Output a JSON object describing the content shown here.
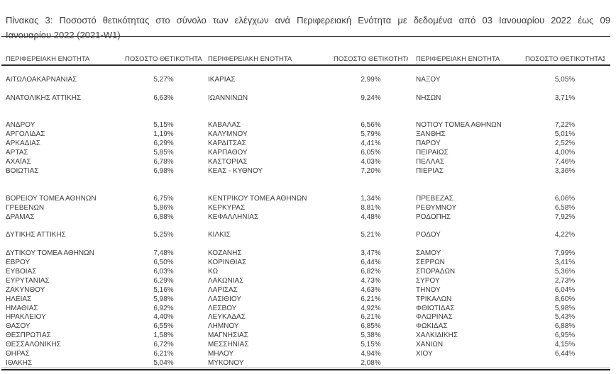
{
  "document": {
    "caption": {
      "line1": "Πίνακας 3: Ποσοστό θετικότητας στο σύνολο των ελέγχων ανά Περιφερειακή Ενότητα με δεδομένα από 03 Ιανουαρίου 2022 έως 09",
      "line2": "Ιανουαρίου 2022 (2021-W1)"
    }
  },
  "colors": {
    "text": "#3b3b3b",
    "rule": "#3a3a3a",
    "rule_heavy": "#1f1f1f",
    "rule_light": "#8c8c8c",
    "background": "#ffffff"
  },
  "table": {
    "headers": [
      "ΠΕΡΙΦΕΡΕΙΑΚΗ ΕΝΟΤΗΤΑ",
      "ΠΟΣΟΣΤΟ ΘΕΤΙΚΟΤΗΤΑΣ",
      "ΠΕΡΙΦΕΡΕΙΑΚΗ ΕΝΟΤΗΤΑ",
      "ΠΟΣΟΣΤΟ ΘΕΤΙΚΟΤΗΤΑΣ",
      "ΠΕΡΙΦΕΡΕΙΑΚΗ ΕΝΟΤΗΤΑ",
      "ΠΟΣΟΣΤΟ ΘΕΤΙΚΟΤΗΤΑΣ"
    ],
    "rows": [
      [
        "ΑΙΤΩΛΟΑΚΑΡΝΑΝΙΑΣ",
        "5,27%",
        "ΙΚΑΡΙΑΣ",
        "2,99%",
        "ΝΑΞΟΥ",
        "5,05%"
      ],
      [
        "",
        "",
        "",
        "",
        "",
        ""
      ],
      [
        "ΑΝΑΤΟΛΙΚΗΣ ΑΤΤΙΚΗΣ",
        "6,63%",
        "ΙΩΑΝΝΙΝΩΝ",
        "9,24%",
        "ΝΗΣΩΝ",
        "3,71%"
      ],
      [
        "",
        "",
        "",
        "",
        "",
        ""
      ],
      [
        "",
        "",
        "",
        "",
        "",
        ""
      ],
      [
        "ΑΝΔΡΟΥ",
        "5,15%",
        "ΚΑΒΑΛΑΣ",
        "6,56%",
        "ΝΟΤΙΟΥ ΤΟΜΕΑ ΑΘΗΝΩΝ",
        "7,22%"
      ],
      [
        "ΑΡΓΟΛΙΔΑΣ",
        "1,19%",
        "ΚΑΛΥΜΝΟΥ",
        "5,79%",
        "ΞΑΝΘΗΣ",
        "5,01%"
      ],
      [
        "ΑΡΚΑΔΙΑΣ",
        "6,29%",
        "ΚΑΡΔΙΤΣΑΣ",
        "4,41%",
        "ΠΑΡΟΥ",
        "2,52%"
      ],
      [
        "ΑΡΤΑΣ",
        "5,85%",
        "ΚΑΡΠΑΘΟΥ",
        "6,05%",
        "ΠΕΙΡΑΙΩΣ",
        "4,00%"
      ],
      [
        "ΑΧΑΪΑΣ",
        "6,78%",
        "ΚΑΣΤΟΡΙΑΣ",
        "4,03%",
        "ΠΕΛΛΑΣ",
        "7,46%"
      ],
      [
        "ΒΟΙΩΤΙΑΣ",
        "6,98%",
        "ΚΕΑΣ - ΚΥΘΝΟΥ",
        "7,20%",
        "ΠΙΕΡΙΑΣ",
        "3,36%"
      ],
      [
        "",
        "",
        "",
        "",
        "",
        ""
      ],
      [
        "",
        "",
        "",
        "",
        "",
        ""
      ],
      [
        "ΒΟΡΕΙΟΥ ΤΟΜΕΑ ΑΘΗΝΩΝ",
        "6,75%",
        "ΚΕΝΤΡΙΚΟΥ ΤΟΜΕΑ ΑΘΗΝΩΝ",
        "1,34%",
        "ΠΡΕΒΕΖΑΣ",
        "6,06%"
      ],
      [
        "ΓΡΕΒΕΝΩΝ",
        "5,86%",
        "ΚΕΡΚΥΡΑΣ",
        "8,81%",
        "ΡΕΘΥΜΝΟΥ",
        "6,58%"
      ],
      [
        "ΔΡΑΜΑΣ",
        "6,88%",
        "ΚΕΦΑΛΛΗΝΙΑΣ",
        "4,48%",
        "ΡΟΔΟΠΗΣ",
        "7,92%"
      ],
      [
        "",
        "",
        "",
        "",
        "",
        ""
      ],
      [
        "ΔΥΤΙΚΗΣ ΑΤΤΙΚΗΣ",
        "5,25%",
        "ΚΙΛΚΙΣ",
        "5,21%",
        "ΡΟΔΟΥ",
        "4,22%"
      ],
      [
        "",
        "",
        "",
        "",
        "",
        ""
      ],
      [
        "ΔΥΤΙΚΟΥ ΤΟΜΕΑ ΑΘΗΝΩΝ",
        "7,48%",
        "ΚΟΖΑΝΗΣ",
        "3,47%",
        "ΣΑΜΟΥ",
        "7,99%"
      ],
      [
        "ΕΒΡΟΥ",
        "6,50%",
        "ΚΟΡΙΝΘΙΑΣ",
        "6,44%",
        "ΣΕΡΡΩΝ",
        "3,41%"
      ],
      [
        "ΕΥΒΟΙΑΣ",
        "6,03%",
        "ΚΩ",
        "6,82%",
        "ΣΠΟΡΑΔΩΝ",
        "5,36%"
      ],
      [
        "ΕΥΡΥΤΑΝΙΑΣ",
        "6,29%",
        "ΛΑΚΩΝΙΑΣ",
        "4,73%",
        "ΣΥΡΟΥ",
        "2,73%"
      ],
      [
        "ΖΑΚΥΝΘΟΥ",
        "5,16%",
        "ΛΑΡΙΣΑΣ",
        "4,63%",
        "ΤΗΝΟΥ",
        "6,04%"
      ],
      [
        "ΗΛΕΙΑΣ",
        "5,98%",
        "ΛΑΣΙΘΙΟΥ",
        "6,21%",
        "ΤΡΙΚΑΛΩΝ",
        "8,60%"
      ],
      [
        "ΗΜΑΘΙΑΣ",
        "6,92%",
        "ΛΕΣΒΟΥ",
        "4,92%",
        "ΦΘΙΩΤΙΔΑΣ",
        "5,98%"
      ],
      [
        "ΗΡΑΚΛΕΙΟΥ",
        "4,40%",
        "ΛΕΥΚΑΔΑΣ",
        "6,21%",
        "ΦΛΩΡΙΝΑΣ",
        "5,43%"
      ],
      [
        "ΘΑΣΟΥ",
        "6,55%",
        "ΛΗΜΝΟΥ",
        "6,85%",
        "ΦΩΚΙΔΑΣ",
        "6,88%"
      ],
      [
        "ΘΕΣΠΡΩΤΙΑΣ",
        "1,58%",
        "ΜΑΓΝΗΣΙΑΣ",
        "5,38%",
        "ΧΑΛΚΙΔΙΚΗΣ",
        "6,95%"
      ],
      [
        "ΘΕΣΣΑΛΟΝΙΚΗΣ",
        "6,72%",
        "ΜΕΣΣΗΝΙΑΣ",
        "5,15%",
        "ΧΑΝΙΩΝ",
        "4,15%"
      ],
      [
        "ΘΗΡΑΣ",
        "6,21%",
        "ΜΗΛΟΥ",
        "4,94%",
        "ΧΙΟΥ",
        "6,44%"
      ],
      [
        "ΙΘΑΚΗΣ",
        "5,04%",
        "ΜΥΚΟΝΟΥ",
        "2,08%",
        "",
        ""
      ]
    ]
  }
}
